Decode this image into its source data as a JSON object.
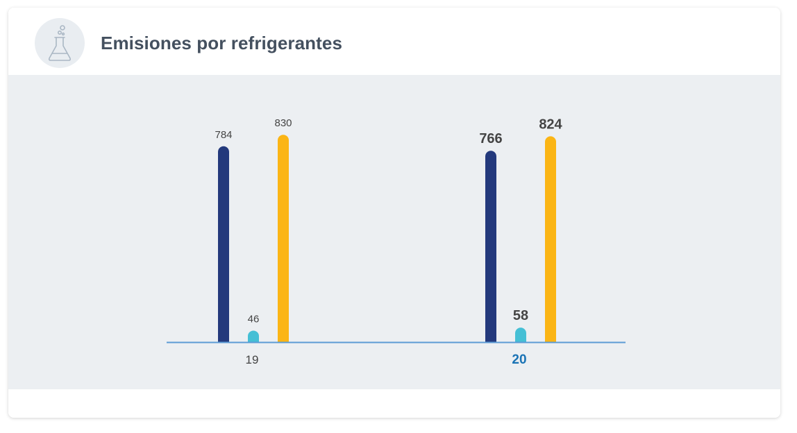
{
  "header": {
    "title": "Emisiones por refrigerantes",
    "icon": "flask-icon"
  },
  "colors": {
    "series": [
      "#23397c",
      "#45bfd5",
      "#fbb515"
    ],
    "axis": "#5b9bd5",
    "category_active": "#1a73b5",
    "category_default": "#444444",
    "label": "#444444"
  },
  "chart_data": {
    "type": "bar",
    "categories": [
      "19",
      "20"
    ],
    "series": [
      {
        "values": [
          784,
          766
        ]
      },
      {
        "values": [
          46,
          58
        ]
      },
      {
        "values": [
          830,
          824
        ]
      }
    ],
    "highlighted_category": "20",
    "ylim": [
      0,
      900
    ],
    "grid": false,
    "legend": "none"
  }
}
